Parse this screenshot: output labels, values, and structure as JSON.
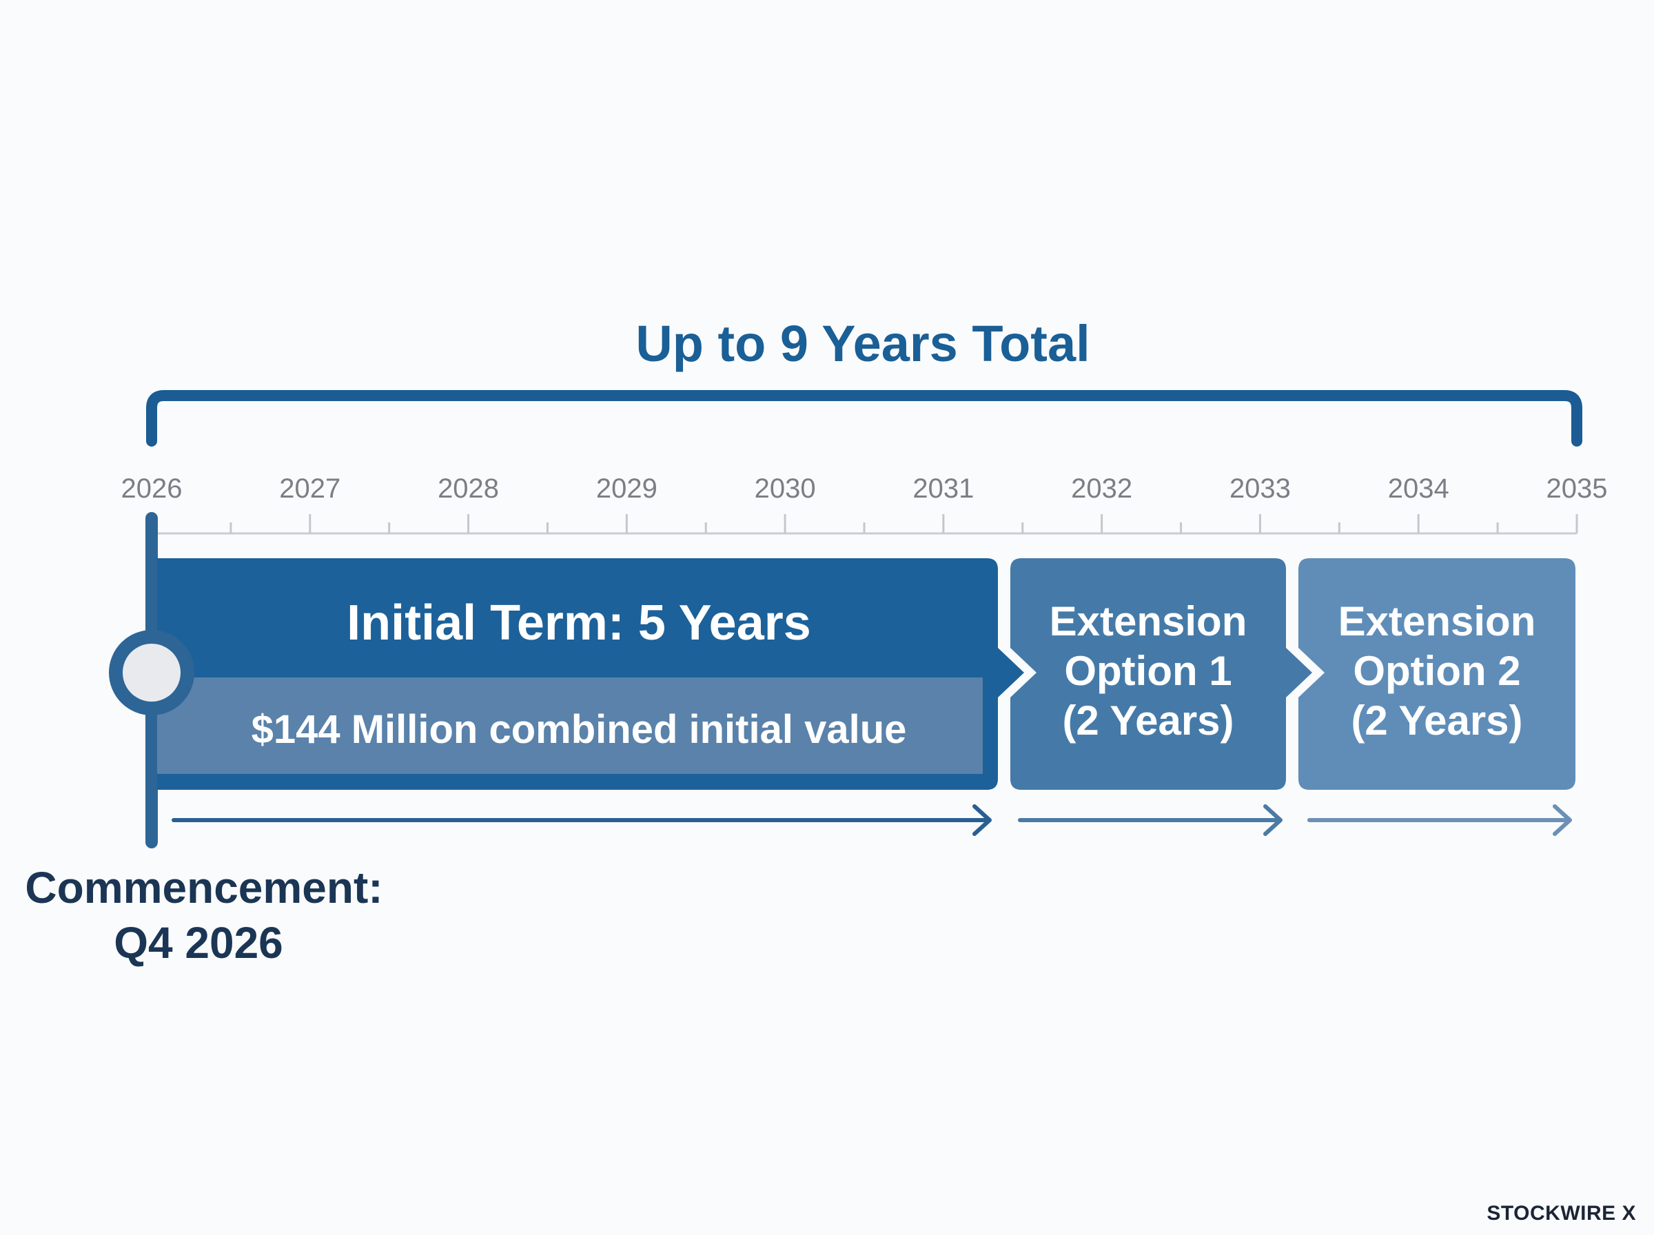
{
  "title": "Up to 9 Years Total",
  "timeline": {
    "years": [
      "2026",
      "2027",
      "2028",
      "2029",
      "2030",
      "2031",
      "2032",
      "2033",
      "2034",
      "2035"
    ]
  },
  "initial_term": {
    "label": "Initial Term: 5 Years",
    "value_label": "$144 Million combined initial value"
  },
  "extension_1": {
    "line1": "Extension",
    "line2": "Option 1",
    "line3": "(2 Years)"
  },
  "extension_2": {
    "line1": "Extension",
    "line2": "Option 2",
    "line3": "(2 Years)"
  },
  "commencement": {
    "line1": "Commencement:",
    "line2": "Q4 2026"
  },
  "watermark": "STOCKWIRE X",
  "colors": {
    "primary": "#1a5f96",
    "bracket": "#1a5c93",
    "initial_fill": "#1c619a",
    "initial_value_band": "#5a82aa",
    "extension_1_fill": "#457aa8",
    "extension_2_fill": "#5f8db8",
    "tick_text": "#7a7f86",
    "commencement_text": "#1b3554"
  }
}
